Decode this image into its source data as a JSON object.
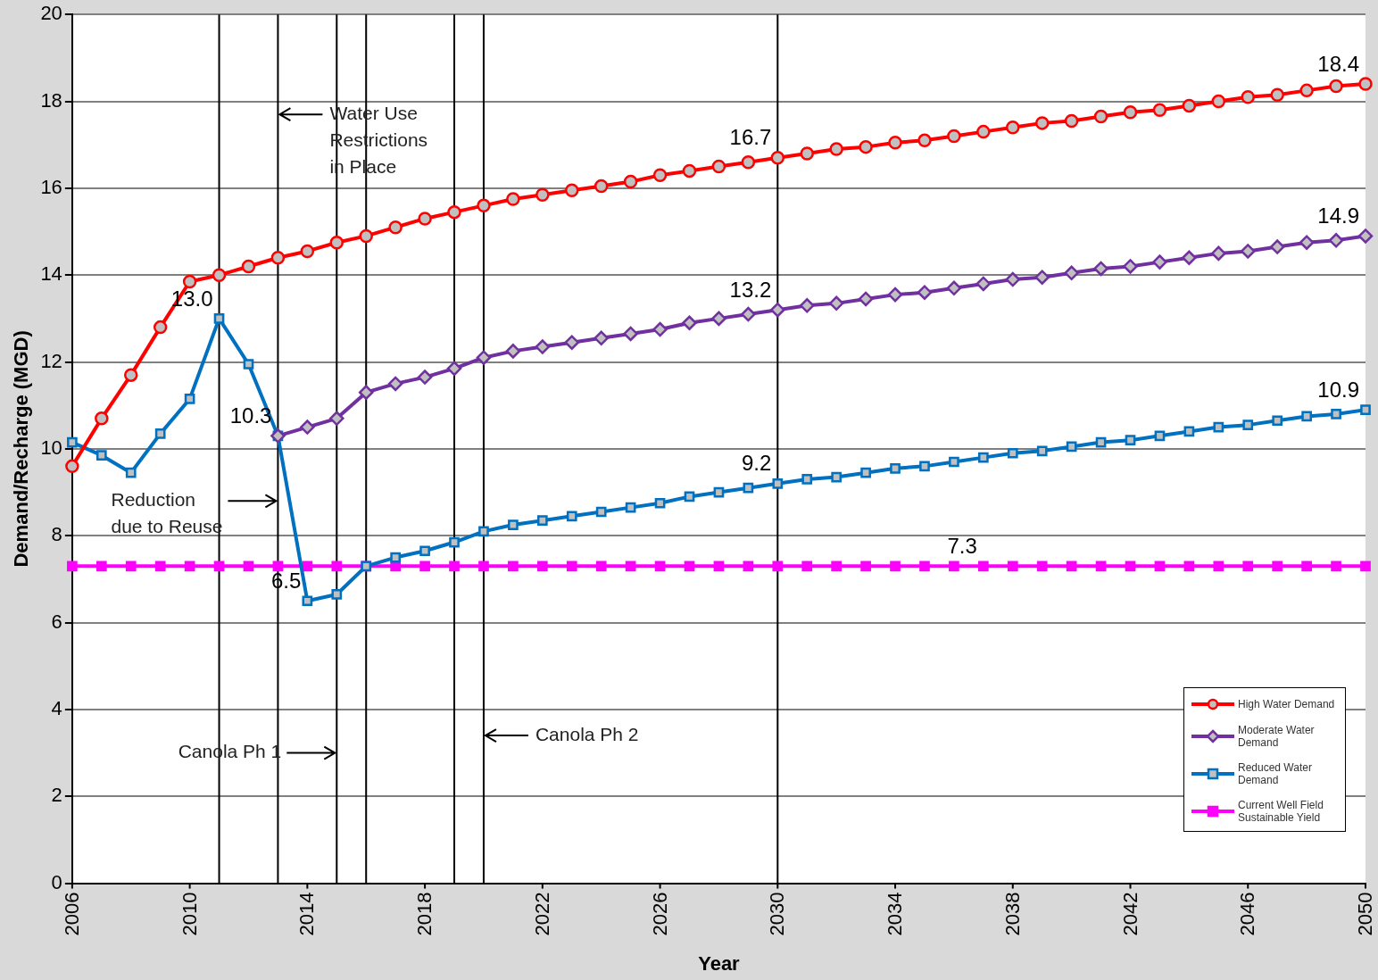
{
  "chart_data": {
    "type": "line",
    "xlabel": "Year",
    "ylabel": "Demand/Recharge (MGD)",
    "x": [
      2006,
      2007,
      2008,
      2009,
      2010,
      2011,
      2012,
      2013,
      2014,
      2015,
      2016,
      2017,
      2018,
      2019,
      2020,
      2021,
      2022,
      2023,
      2024,
      2025,
      2026,
      2027,
      2028,
      2029,
      2030,
      2031,
      2032,
      2033,
      2034,
      2035,
      2036,
      2037,
      2038,
      2039,
      2040,
      2041,
      2042,
      2043,
      2044,
      2045,
      2046,
      2047,
      2048,
      2049,
      2050
    ],
    "xlim": [
      2006,
      2050
    ],
    "xticks": [
      2006,
      2010,
      2014,
      2018,
      2022,
      2026,
      2030,
      2034,
      2038,
      2042,
      2046,
      2050
    ],
    "ylim": [
      0,
      20
    ],
    "yticks": [
      0,
      2,
      4,
      6,
      8,
      10,
      12,
      14,
      16,
      18,
      20
    ],
    "grid": "y",
    "legend": "bottom right",
    "line_style": "solid",
    "series": [
      {
        "name": "High Water Demand",
        "color": "#ff0000",
        "marker": "circle",
        "values": [
          9.6,
          10.7,
          11.7,
          12.8,
          13.85,
          14.0,
          14.2,
          14.4,
          14.55,
          14.75,
          14.9,
          15.1,
          15.3,
          15.45,
          15.6,
          15.75,
          15.85,
          15.95,
          16.05,
          16.15,
          16.3,
          16.4,
          16.5,
          16.6,
          16.7,
          16.8,
          16.9,
          16.95,
          17.05,
          17.1,
          17.2,
          17.3,
          17.4,
          17.5,
          17.55,
          17.65,
          17.75,
          17.8,
          17.9,
          18.0,
          18.1,
          18.15,
          18.25,
          18.35,
          18.4
        ],
        "value_labels": [
          null,
          null,
          null,
          null,
          null,
          null,
          null,
          null,
          null,
          null,
          null,
          null,
          null,
          null,
          null,
          null,
          null,
          null,
          null,
          null,
          null,
          null,
          null,
          null,
          "16.7",
          null,
          null,
          null,
          null,
          null,
          null,
          null,
          null,
          null,
          null,
          null,
          null,
          null,
          null,
          null,
          null,
          null,
          null,
          null,
          "18.4"
        ]
      },
      {
        "name": "Moderate Water Demand",
        "color": "#7030a0",
        "marker": "diamond",
        "values": [
          null,
          null,
          null,
          null,
          null,
          null,
          null,
          10.3,
          10.5,
          10.7,
          11.3,
          11.5,
          11.65,
          11.85,
          12.1,
          12.25,
          12.35,
          12.45,
          12.55,
          12.65,
          12.75,
          12.9,
          13.0,
          13.1,
          13.2,
          13.3,
          13.35,
          13.45,
          13.55,
          13.6,
          13.7,
          13.8,
          13.9,
          13.95,
          14.05,
          14.15,
          14.2,
          14.3,
          14.4,
          14.5,
          14.55,
          14.65,
          14.75,
          14.8,
          14.9
        ],
        "value_labels": [
          null,
          null,
          null,
          null,
          null,
          null,
          null,
          null,
          null,
          null,
          null,
          null,
          null,
          null,
          null,
          null,
          null,
          null,
          null,
          null,
          null,
          null,
          null,
          null,
          "13.2",
          null,
          null,
          null,
          null,
          null,
          null,
          null,
          null,
          null,
          null,
          null,
          null,
          null,
          null,
          null,
          null,
          null,
          null,
          null,
          "14.9"
        ]
      },
      {
        "name": "Reduced Water Demand",
        "color": "#0070c0",
        "marker": "square",
        "values": [
          10.15,
          9.85,
          9.45,
          10.35,
          11.15,
          13.0,
          11.95,
          10.3,
          6.5,
          6.65,
          7.3,
          7.5,
          7.65,
          7.85,
          8.1,
          8.25,
          8.35,
          8.45,
          8.55,
          8.65,
          8.75,
          8.9,
          9.0,
          9.1,
          9.2,
          9.3,
          9.35,
          9.45,
          9.55,
          9.6,
          9.7,
          9.8,
          9.9,
          9.95,
          10.05,
          10.15,
          10.2,
          10.3,
          10.4,
          10.5,
          10.55,
          10.65,
          10.75,
          10.8,
          10.9
        ],
        "value_labels": [
          null,
          null,
          null,
          null,
          null,
          "13.0",
          null,
          "10.3",
          "6.5",
          null,
          null,
          null,
          null,
          null,
          null,
          null,
          null,
          null,
          null,
          null,
          null,
          null,
          null,
          null,
          "9.2",
          null,
          null,
          null,
          null,
          null,
          null,
          null,
          null,
          null,
          null,
          null,
          null,
          null,
          null,
          null,
          null,
          null,
          null,
          null,
          "10.9"
        ]
      },
      {
        "name": "Current Well Field Sustainable Yield",
        "color": "#ff00ff",
        "marker": "square",
        "values": [
          7.3,
          7.3,
          7.3,
          7.3,
          7.3,
          7.3,
          7.3,
          7.3,
          7.3,
          7.3,
          7.3,
          7.3,
          7.3,
          7.3,
          7.3,
          7.3,
          7.3,
          7.3,
          7.3,
          7.3,
          7.3,
          7.3,
          7.3,
          7.3,
          7.3,
          7.3,
          7.3,
          7.3,
          7.3,
          7.3,
          7.3,
          7.3,
          7.3,
          7.3,
          7.3,
          7.3,
          7.3,
          7.3,
          7.3,
          7.3,
          7.3,
          7.3,
          7.3,
          7.3,
          7.3
        ],
        "value_labels": [
          null,
          null,
          null,
          null,
          null,
          null,
          null,
          null,
          null,
          null,
          null,
          null,
          null,
          null,
          null,
          null,
          null,
          null,
          null,
          null,
          null,
          null,
          null,
          null,
          null,
          null,
          null,
          null,
          null,
          null,
          null,
          "7.3",
          null,
          null,
          null,
          null,
          null,
          null,
          null,
          null,
          null,
          null,
          null,
          null,
          null
        ]
      }
    ],
    "ref_lines": [
      {
        "axis": "x",
        "value": 2011,
        "color": "#000000"
      },
      {
        "axis": "x",
        "value": 2013,
        "color": "#000000"
      },
      {
        "axis": "x",
        "value": 2015,
        "color": "#000000"
      },
      {
        "axis": "x",
        "value": 2016,
        "color": "#000000"
      },
      {
        "axis": "x",
        "value": 2019,
        "color": "#000000"
      },
      {
        "axis": "x",
        "value": 2020,
        "color": "#000000"
      },
      {
        "axis": "x",
        "value": 2030,
        "color": "#000000"
      }
    ],
    "annotations": [
      {
        "text": "Water Use Restrictions in Place",
        "x": 2013,
        "y": 17.7
      },
      {
        "text": "Reduction due to Reuse",
        "x": 2013,
        "y": 8.8
      },
      {
        "text": "Canola Ph 1",
        "x": 2015,
        "y": 3.0
      },
      {
        "text": "Canola Ph 2",
        "x": 2020,
        "y": 3.4
      }
    ]
  }
}
